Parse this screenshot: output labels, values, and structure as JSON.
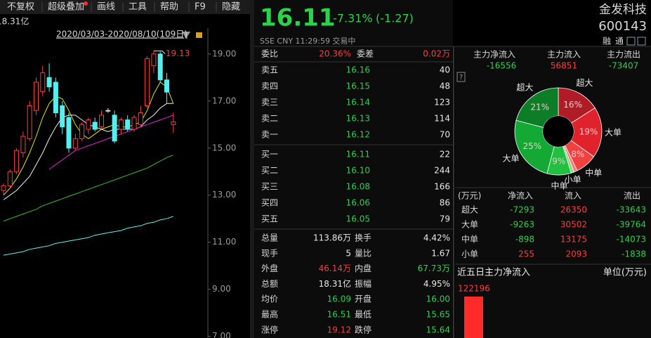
{
  "toolbar": {
    "items": [
      "不复权",
      "超级叠加",
      "画线",
      "工具",
      "帮助",
      "F9",
      "隐藏"
    ]
  },
  "kline": {
    "amount_label": "18.31亿",
    "date_range": "2020/03/03-2020/08/10(109日)",
    "ylim": [
      6.9,
      20.1
    ],
    "yticks": [
      {
        "value": 19,
        "label": "19.00"
      },
      {
        "value": 17,
        "label": "17.00"
      },
      {
        "value": 15,
        "label": "15.00"
      },
      {
        "value": 13,
        "label": "13.00"
      },
      {
        "value": 11,
        "label": "11.00"
      },
      {
        "value": 9,
        "label": "9.00"
      },
      {
        "value": 7,
        "label": "7.00"
      }
    ],
    "high_marker": 19.13,
    "candles": {
      "open": [
        13.2,
        13.4,
        14.0,
        14.8,
        15.4,
        16.6,
        17.4,
        18.0,
        17.8,
        16.8,
        16.3,
        15.0,
        15.4,
        15.8,
        16.1,
        15.9,
        16.6,
        16.4,
        15.8,
        16.2,
        15.8,
        16.0,
        16.8,
        18.5,
        19.0,
        17.9,
        16.0
      ],
      "high": [
        13.5,
        14.1,
        15.0,
        15.7,
        17.0,
        18.0,
        18.5,
        18.6,
        18.0,
        17.0,
        16.5,
        15.6,
        16.1,
        16.3,
        16.3,
        16.6,
        16.7,
        16.6,
        16.3,
        16.4,
        16.4,
        16.8,
        18.9,
        19.13,
        19.1,
        18.2,
        16.51
      ],
      "low": [
        13.0,
        13.3,
        13.9,
        14.6,
        15.3,
        16.4,
        17.2,
        17.4,
        16.3,
        15.6,
        14.8,
        14.9,
        15.3,
        15.6,
        15.7,
        15.8,
        16.5,
        15.2,
        15.6,
        15.7,
        15.7,
        15.9,
        16.7,
        18.2,
        17.8,
        16.9,
        15.65
      ],
      "close": [
        13.4,
        14.0,
        14.9,
        15.5,
        16.8,
        17.8,
        18.2,
        17.6,
        16.5,
        15.9,
        15.0,
        15.4,
        16.0,
        16.2,
        15.8,
        16.4,
        16.6,
        15.3,
        16.2,
        15.8,
        16.3,
        16.5,
        18.8,
        19.0,
        17.9,
        17.38,
        16.11
      ]
    },
    "up_color": "#ff3c3c",
    "down_color": "#54f0f0",
    "flat_color": "#e0e0e0",
    "ma": [
      {
        "color": "#e6e600",
        "values": [
          13.0,
          13.3,
          13.7,
          14.2,
          14.8,
          15.5,
          16.3,
          16.9,
          17.2,
          17.1,
          16.6,
          16.0,
          15.6,
          15.4,
          15.6,
          15.8,
          15.9,
          16.0,
          15.9,
          15.9,
          16.0,
          16.1,
          16.6,
          17.3,
          17.8,
          17.6,
          16.9
        ]
      },
      {
        "color": "#f0f0f0",
        "values": [
          12.8,
          13.0,
          13.2,
          13.5,
          13.8,
          14.3,
          14.8,
          15.4,
          15.9,
          16.3,
          16.4,
          16.4,
          16.2,
          16.0,
          15.9,
          15.8,
          15.7,
          15.8,
          15.8,
          15.8,
          15.8,
          15.9,
          16.2,
          16.4,
          16.7,
          16.9,
          16.9
        ]
      },
      {
        "color": "#e020e0",
        "values": [
          null,
          null,
          null,
          null,
          null,
          null,
          null,
          14.1,
          14.3,
          14.5,
          14.7,
          14.9,
          15.0,
          15.1,
          15.2,
          15.3,
          15.4,
          15.5,
          15.6,
          15.7,
          15.8,
          15.9,
          16.0,
          16.1,
          16.2,
          16.3,
          16.4
        ]
      },
      {
        "color": "#30c030",
        "values": [
          11.9,
          12.0,
          12.1,
          12.2,
          12.3,
          12.4,
          12.55,
          12.65,
          12.75,
          12.85,
          12.95,
          13.05,
          13.15,
          13.25,
          13.35,
          13.45,
          13.55,
          13.65,
          13.75,
          13.85,
          13.95,
          14.05,
          14.15,
          14.3,
          14.45,
          14.6,
          14.7
        ]
      },
      {
        "color": "#60f0f0",
        "values": [
          10.45,
          10.5,
          10.55,
          10.6,
          10.7,
          10.75,
          10.8,
          10.85,
          10.95,
          11.0,
          11.05,
          11.1,
          11.15,
          11.2,
          11.3,
          11.35,
          11.4,
          11.45,
          11.5,
          11.6,
          11.65,
          11.7,
          11.8,
          11.85,
          11.95,
          12.0,
          12.1
        ]
      }
    ]
  },
  "quote": {
    "price": "16.11",
    "change_pct": "-7.31%",
    "change": "(-1.27)",
    "name": "金发科技",
    "code": "600143",
    "info": "SSE  CNY  11:29:59  交易中",
    "badges": [
      "融",
      "通"
    ],
    "ratio": [
      "委比",
      "20.36%",
      "委差",
      "0.02万"
    ],
    "asks": [
      [
        "卖五",
        "16.16",
        "40"
      ],
      [
        "卖四",
        "16.15",
        "48"
      ],
      [
        "卖三",
        "16.14",
        "123"
      ],
      [
        "卖二",
        "16.13",
        "114"
      ],
      [
        "卖一",
        "16.12",
        "70"
      ]
    ],
    "bids": [
      [
        "买一",
        "16.11",
        "22"
      ],
      [
        "买二",
        "16.10",
        "244"
      ],
      [
        "买三",
        "16.08",
        "166"
      ],
      [
        "买四",
        "16.06",
        "86"
      ],
      [
        "买五",
        "16.05",
        "79"
      ]
    ],
    "stats": [
      [
        "总量",
        "113.86万",
        "换手",
        "4.42%"
      ],
      [
        "现手",
        "5",
        "量比",
        "1.67"
      ],
      [
        "外盘",
        "46.14万",
        "内盘",
        "67.73万"
      ],
      [
        "总额",
        "18.31亿",
        "振幅",
        "4.95%"
      ],
      [
        "均价",
        "16.09",
        "开盘",
        "16.00"
      ],
      [
        "最高",
        "16.51",
        "最低",
        "15.65"
      ],
      [
        "涨停",
        "19.12",
        "跌停",
        "15.64"
      ]
    ]
  },
  "flow": {
    "header": [
      [
        "主力净流入",
        -16556
      ],
      [
        "主力流入",
        56851
      ],
      [
        "主力流出",
        -73407
      ]
    ],
    "help": "?",
    "donut": {
      "values": [
        16,
        19,
        8,
        1.3,
        1.1,
        9,
        25,
        21
      ],
      "value_labels": [
        "16%",
        "19%",
        "8%",
        null,
        null,
        "9%",
        "25%",
        "21%"
      ],
      "names": [
        "超大",
        "大单",
        "中单",
        "小单",
        null,
        "中单",
        "大单",
        "超大"
      ],
      "colors": [
        "#b01c26",
        "#e0222c",
        "#f04040",
        "#ff7a7a",
        "#7ae07a",
        "#22c040",
        "#14a834",
        "#0c7e28"
      ]
    },
    "table": {
      "columns": [
        "(万元)",
        "净流入",
        "流入",
        "流出"
      ],
      "rows": [
        [
          "超大",
          -7293,
          26350,
          -33643
        ],
        [
          "大单",
          -9263,
          30502,
          -39764
        ],
        [
          "中单",
          -898,
          13175,
          -14073
        ],
        [
          "小单",
          255,
          2093,
          -1838
        ]
      ]
    },
    "five_day": {
      "title": "近五日主力净流入",
      "unit": "单位(万元)",
      "values": [
        122196
      ],
      "color": "#ff2a2a"
    }
  }
}
